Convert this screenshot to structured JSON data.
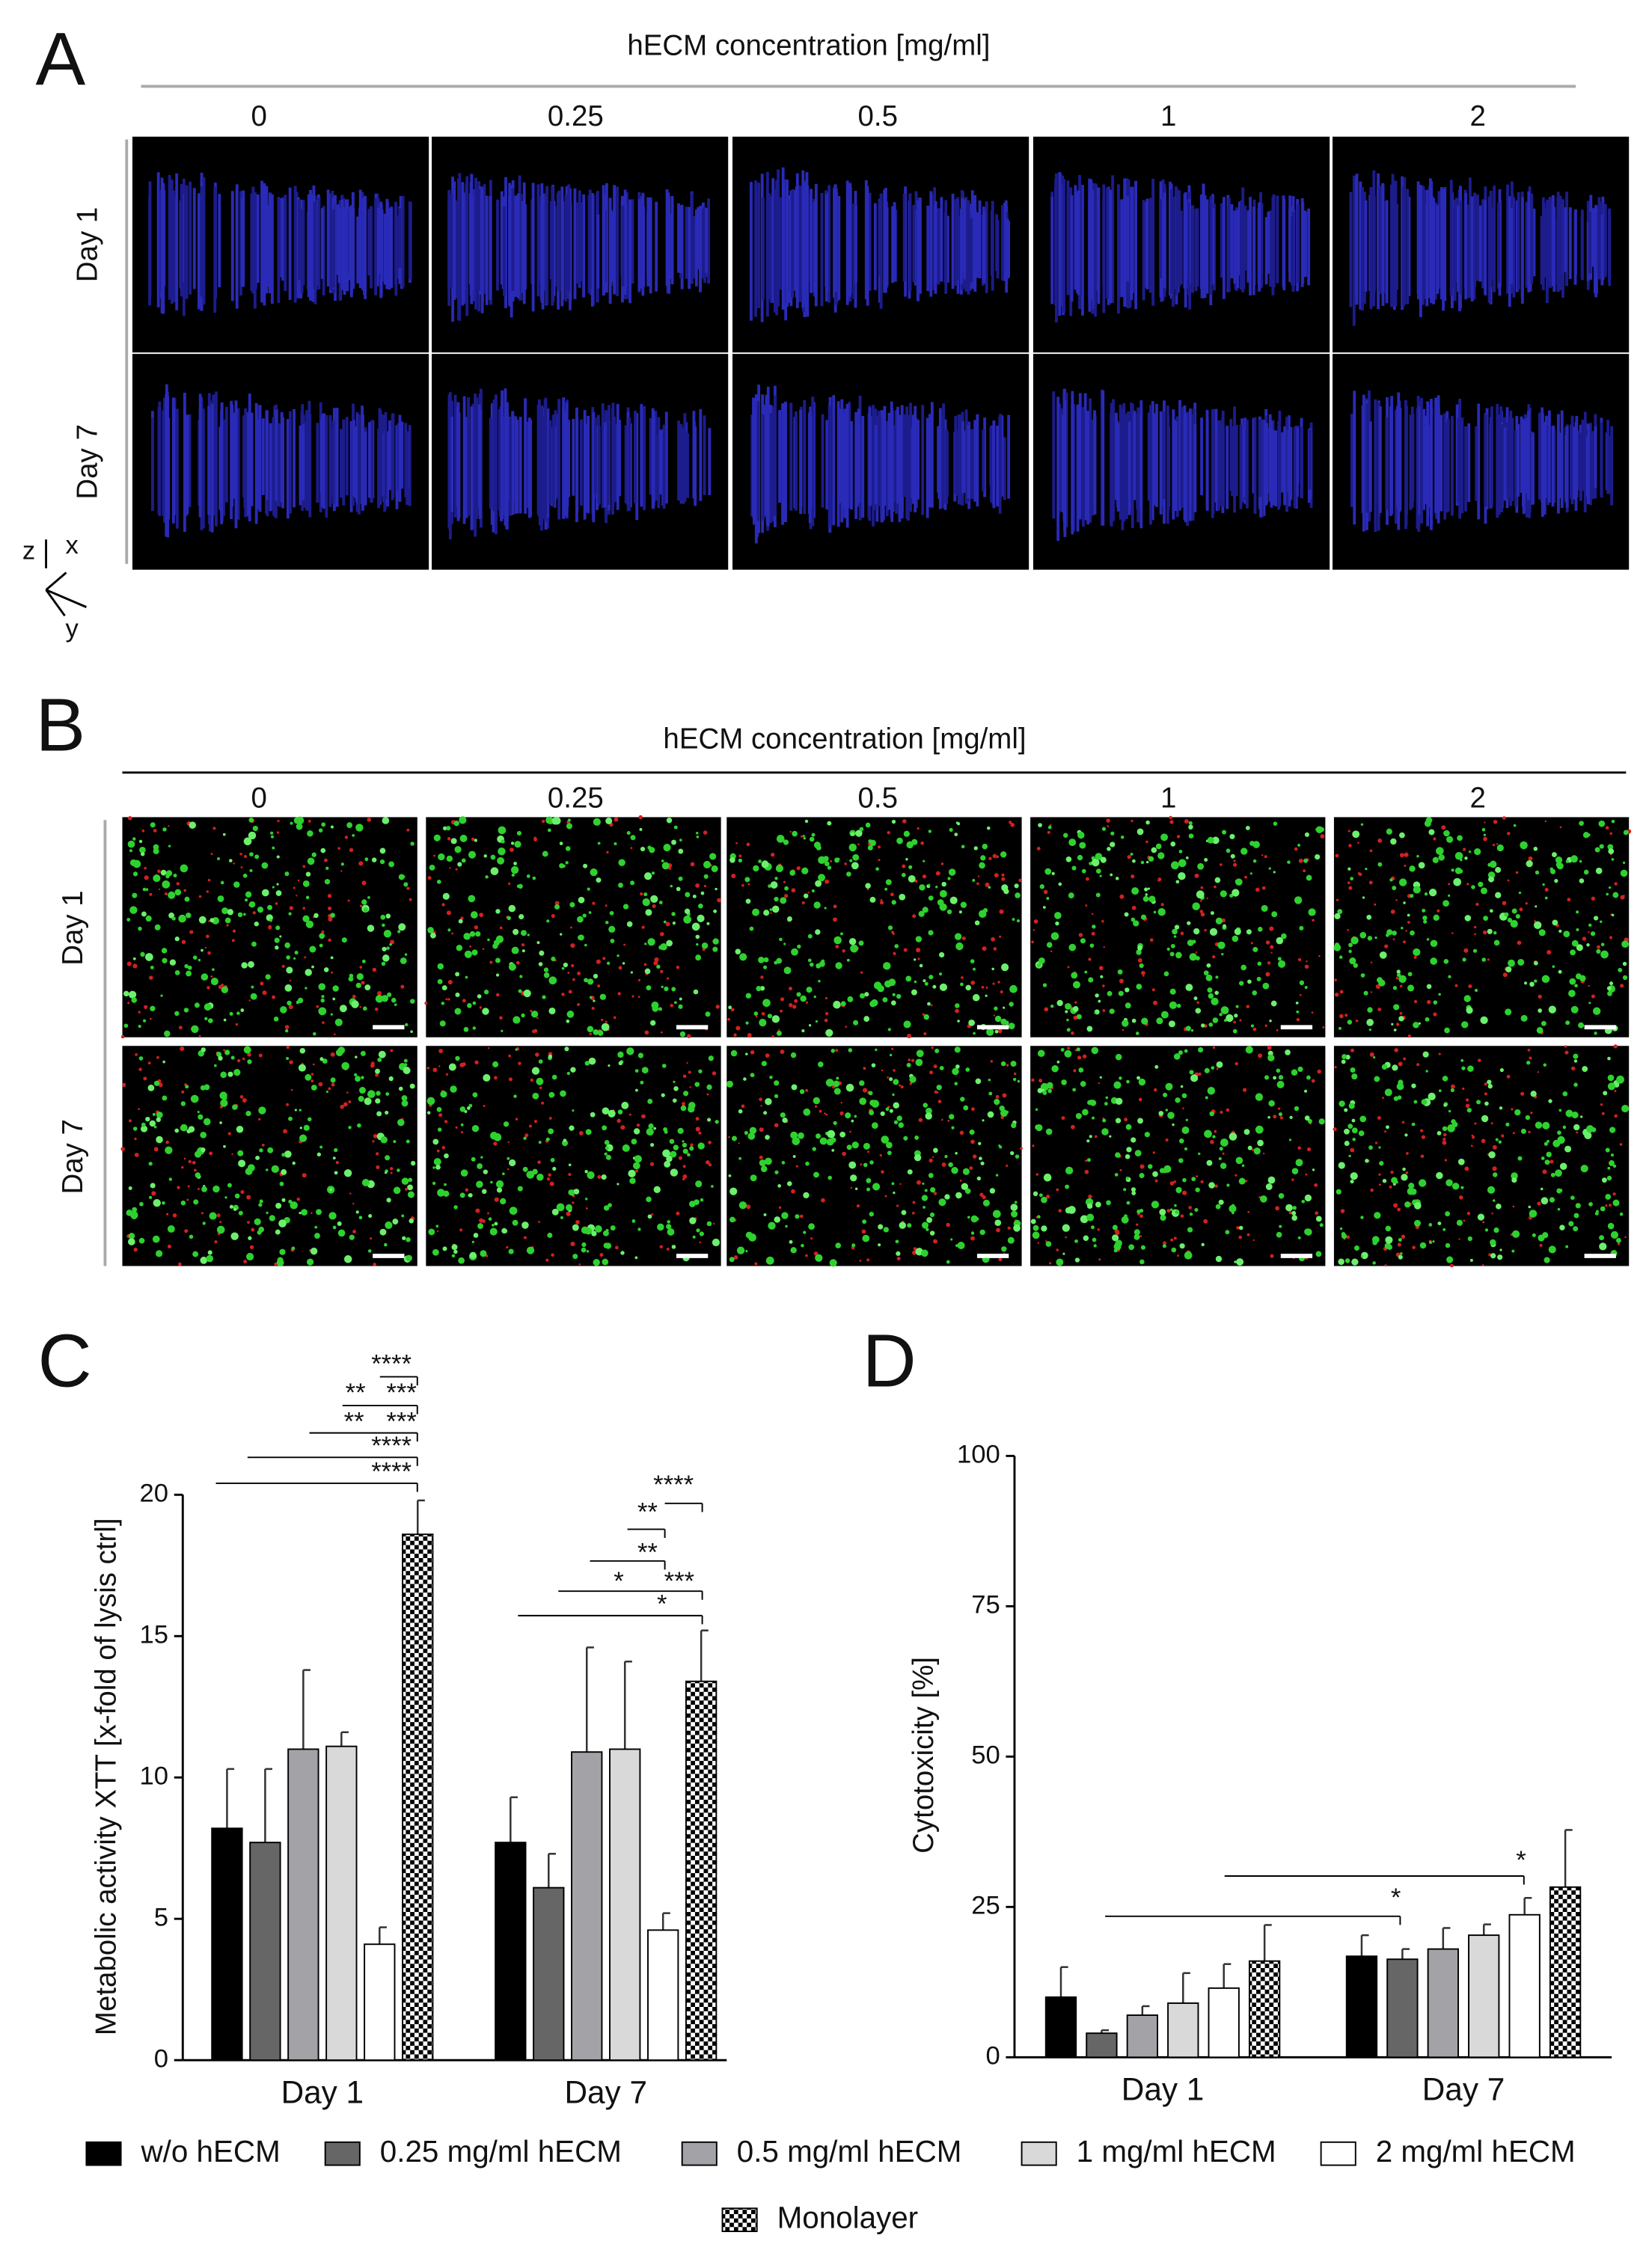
{
  "panel_a": {
    "letter": "A",
    "header": "hECM concentration [mg/ml]",
    "columns": [
      "0",
      "0.25",
      "0.5",
      "1",
      "2"
    ],
    "rows": [
      "Day 1",
      "Day 7"
    ],
    "axes": [
      "z",
      "x",
      "y"
    ]
  },
  "panel_b": {
    "letter": "B",
    "header": "hECM concentration [mg/ml]",
    "columns": [
      "0",
      "0.25",
      "0.5",
      "1",
      "2"
    ],
    "rows": [
      "Day 1",
      "Day 7"
    ]
  },
  "chart_data": [
    {
      "type": "bar",
      "panel": "C",
      "y_label": "Metabolic activity XTT [x-fold of lysis ctrl]",
      "categories": [
        "Day 1",
        "Day 7"
      ],
      "ylim": [
        0,
        20
      ],
      "yticks": [
        0,
        5,
        10,
        15,
        20
      ],
      "series": [
        {
          "name": "w/o hECM",
          "color": "#000000",
          "values": [
            8.2,
            7.7
          ],
          "errors": [
            2.1,
            1.6
          ]
        },
        {
          "name": "0.25 mg/ml hECM",
          "color": "#666666",
          "values": [
            7.7,
            6.1
          ],
          "errors": [
            2.6,
            1.2
          ]
        },
        {
          "name": "0.5 mg/ml hECM",
          "color": "#a3a3a7",
          "values": [
            11.0,
            10.9
          ],
          "errors": [
            2.8,
            3.7
          ]
        },
        {
          "name": "1 mg/ml hECM",
          "color": "#d9d9d9",
          "values": [
            11.1,
            11.0
          ],
          "errors": [
            0.5,
            3.1
          ]
        },
        {
          "name": "2 mg/ml hECM",
          "color": "#ffffff",
          "values": [
            4.1,
            4.6
          ],
          "errors": [
            0.6,
            0.6
          ]
        },
        {
          "name": "Monolayer",
          "color": "#000000",
          "pattern": "checker",
          "values": [
            18.6,
            13.4
          ],
          "errors": [
            1.2,
            1.8
          ]
        }
      ],
      "annotations": [
        "****",
        "**",
        "***",
        "**",
        "***",
        "****",
        "****",
        "****",
        "**",
        "**",
        "*",
        "***",
        "*"
      ]
    },
    {
      "type": "bar",
      "panel": "D",
      "y_label": "Cytotoxicity [%]",
      "categories": [
        "Day 1",
        "Day 7"
      ],
      "ylim": [
        0,
        100
      ],
      "yticks": [
        0,
        25,
        50,
        75,
        100
      ],
      "series": [
        {
          "name": "w/o hECM",
          "color": "#000000",
          "values": [
            10,
            16.8
          ],
          "errors": [
            5,
            3.5
          ]
        },
        {
          "name": "0.25 mg/ml hECM",
          "color": "#666666",
          "values": [
            4,
            16.3
          ],
          "errors": [
            0.5,
            1.7
          ]
        },
        {
          "name": "0.5 mg/ml hECM",
          "color": "#a3a3a7",
          "values": [
            7,
            18
          ],
          "errors": [
            1.5,
            3.5
          ]
        },
        {
          "name": "1 mg/ml hECM",
          "color": "#d9d9d9",
          "values": [
            9,
            20.3
          ],
          "errors": [
            5,
            1.8
          ]
        },
        {
          "name": "2 mg/ml hECM",
          "color": "#ffffff",
          "values": [
            11.5,
            23.7
          ],
          "errors": [
            4,
            2.8
          ]
        },
        {
          "name": "Monolayer",
          "color": "#000000",
          "pattern": "checker",
          "values": [
            16,
            28.3
          ],
          "errors": [
            6,
            9.5
          ]
        }
      ],
      "annotations": [
        "*",
        "*"
      ]
    }
  ]
}
